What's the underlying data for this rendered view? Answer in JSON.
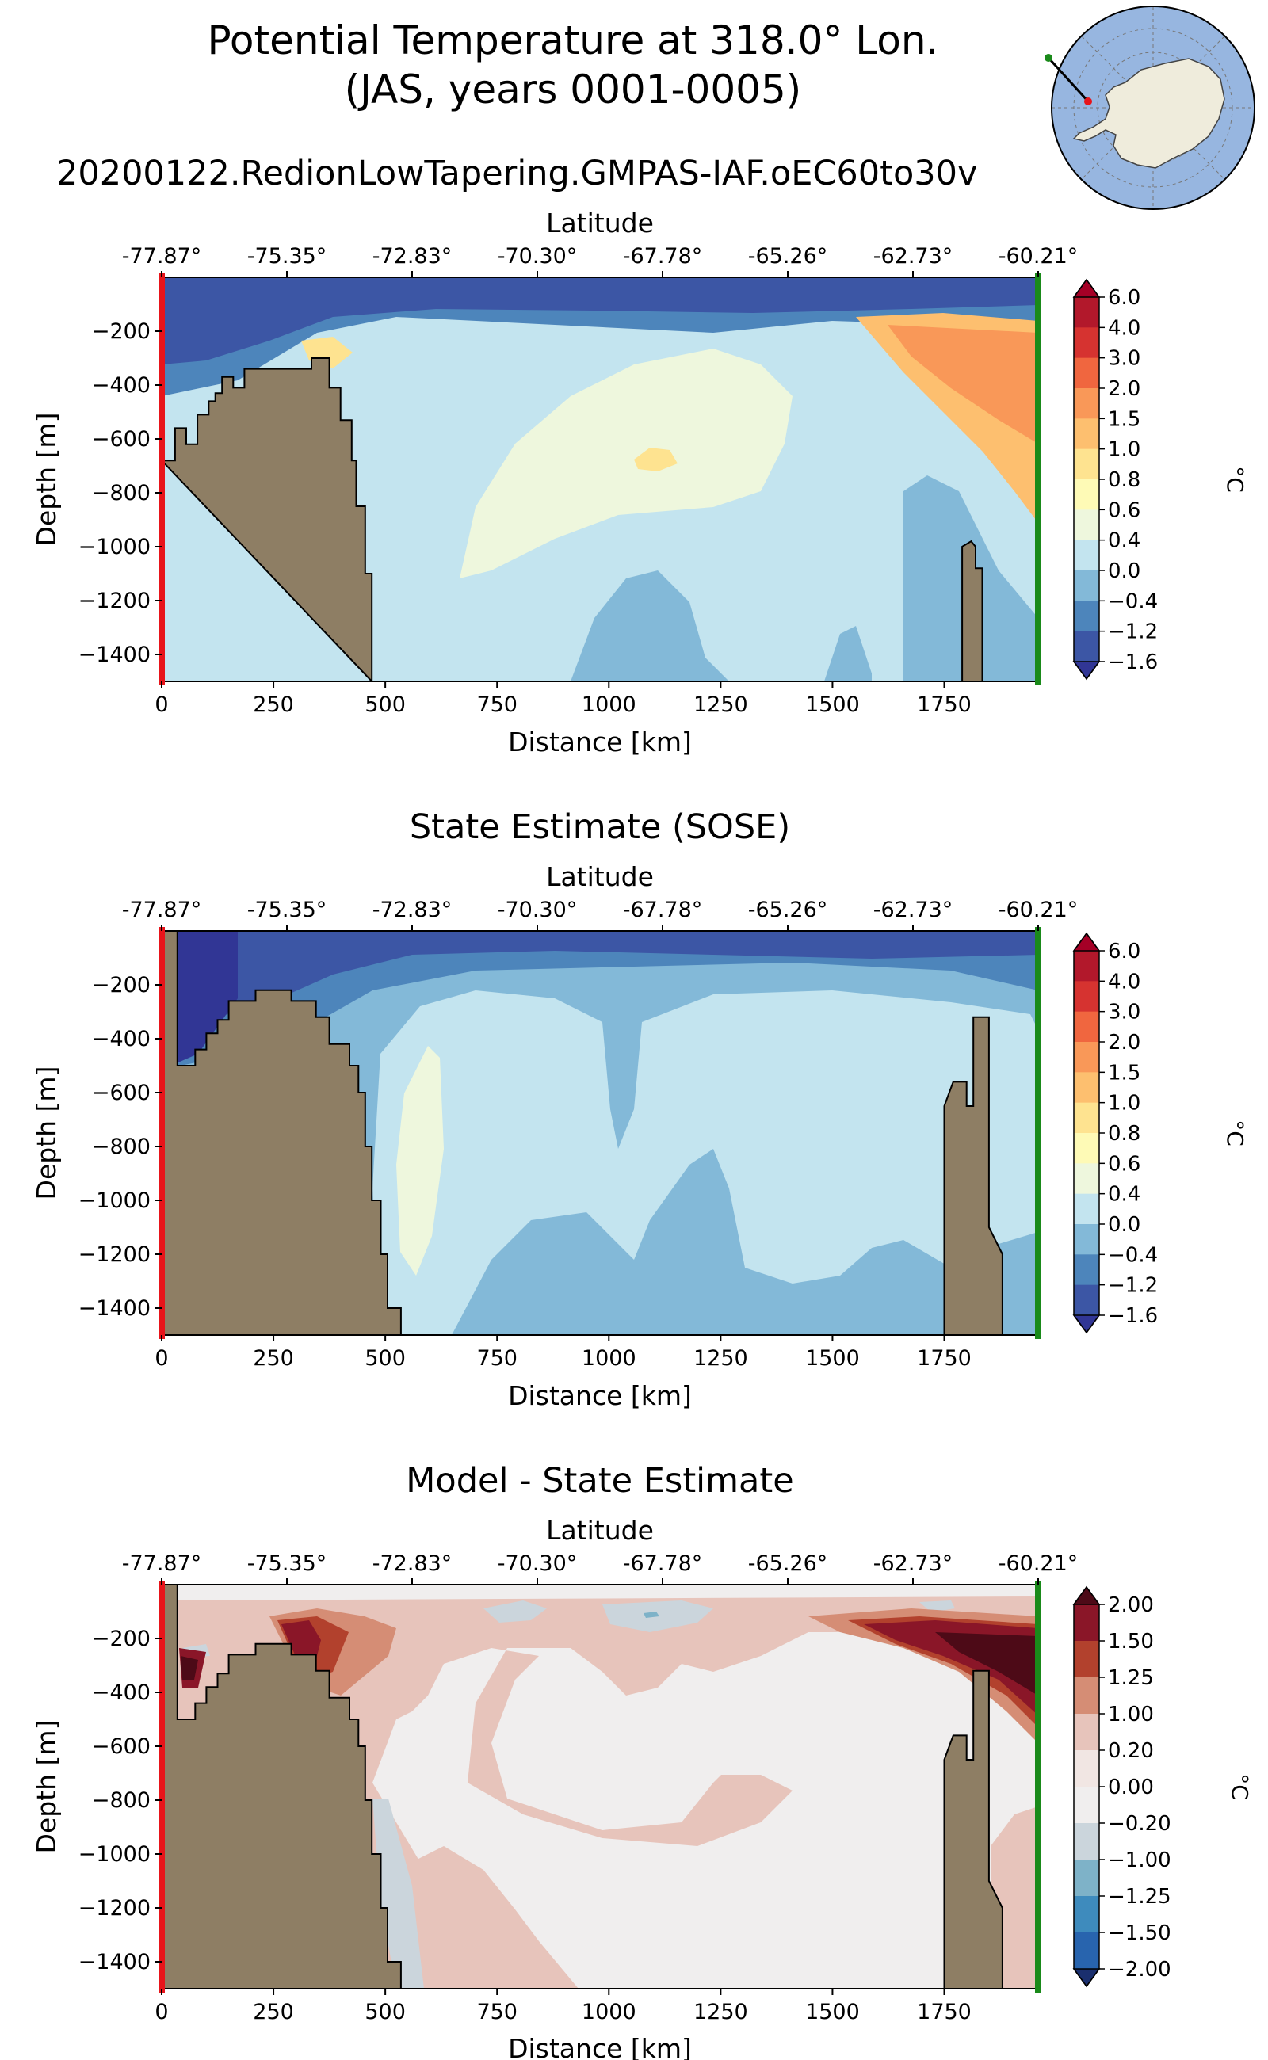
{
  "figure": {
    "title_line1": "Potential Temperature at 318.0° Lon.",
    "title_line2": "(JAS, years 0001-0005)"
  },
  "inset_map": {
    "description_icon": "antarctica-map-icon",
    "start_marker_color": "#1a8a1a",
    "end_marker_color": "#e8141a",
    "ocean_color": "#97b6e0",
    "land_color": "#efecdc"
  },
  "chart_data": [
    {
      "type": "heatmap",
      "title": "20200122.RedionLowTapering.GMPAS-IAF.oEC60to30v",
      "xlabel": "Distance [km]",
      "ylabel": "Depth [m]",
      "top_xlabel": "Latitude",
      "x_ticks": [
        0,
        250,
        500,
        750,
        1000,
        1250,
        1500,
        1750
      ],
      "x_tick_labels": [
        "0",
        "250",
        "500",
        "750",
        "1000",
        "1250",
        "1500",
        "1750"
      ],
      "top_ticks": [
        "-77.87°",
        "-75.35°",
        "-72.83°",
        "-70.30°",
        "-67.78°",
        "-65.26°",
        "-62.73°",
        "-60.21°"
      ],
      "y_ticks": [
        -200,
        -400,
        -600,
        -800,
        -1000,
        -1200,
        -1400
      ],
      "y_tick_labels": [
        "−200",
        "−400",
        "−600",
        "−800",
        "−1000",
        "−1200",
        "−1400"
      ],
      "xlim": [
        0,
        1960
      ],
      "ylim": [
        -1500,
        0
      ],
      "colorbar_label": "°C",
      "colorbar_levels": [
        "6.0",
        "4.0",
        "3.0",
        "2.0",
        "1.5",
        "1.0",
        "0.8",
        "0.6",
        "0.4",
        "0.0",
        "−0.4",
        "−1.2",
        "−1.6"
      ],
      "colorbar_colors": [
        "#b2182b",
        "#d63330",
        "#f0663f",
        "#f99858",
        "#fdbf6f",
        "#fee390",
        "#fefab6",
        "#eef7dd",
        "#c3e4ef",
        "#83b9d8",
        "#4d85bb",
        "#3c56a5"
      ],
      "extend_max_color": "#a50026",
      "extend_min_color": "#313695",
      "bathymetry": [
        [
          0,
          -680
        ],
        [
          30,
          -680
        ],
        [
          30,
          -560
        ],
        [
          55,
          -560
        ],
        [
          55,
          -620
        ],
        [
          80,
          -620
        ],
        [
          80,
          -510
        ],
        [
          105,
          -510
        ],
        [
          105,
          -460
        ],
        [
          120,
          -460
        ],
        [
          120,
          -430
        ],
        [
          135,
          -430
        ],
        [
          135,
          -370
        ],
        [
          160,
          -370
        ],
        [
          160,
          -410
        ],
        [
          185,
          -410
        ],
        [
          185,
          -340
        ],
        [
          335,
          -340
        ],
        [
          335,
          -300
        ],
        [
          375,
          -300
        ],
        [
          375,
          -410
        ],
        [
          400,
          -410
        ],
        [
          400,
          -530
        ],
        [
          425,
          -530
        ],
        [
          425,
          -680
        ],
        [
          435,
          -680
        ],
        [
          435,
          -850
        ],
        [
          455,
          -850
        ],
        [
          455,
          -1100
        ],
        [
          470,
          -1100
        ],
        [
          470,
          -1500
        ]
      ],
      "seamount": [
        [
          1790,
          -1500
        ],
        [
          1790,
          -1000
        ],
        [
          1810,
          -980
        ],
        [
          1820,
          -1000
        ],
        [
          1820,
          -1080
        ],
        [
          1835,
          -1080
        ],
        [
          1835,
          -1500
        ]
      ]
    },
    {
      "type": "heatmap",
      "title": "State Estimate (SOSE)",
      "xlabel": "Distance [km]",
      "ylabel": "Depth [m]",
      "top_xlabel": "Latitude",
      "x_ticks": [
        0,
        250,
        500,
        750,
        1000,
        1250,
        1500,
        1750
      ],
      "x_tick_labels": [
        "0",
        "250",
        "500",
        "750",
        "1000",
        "1250",
        "1500",
        "1750"
      ],
      "top_ticks": [
        "-77.87°",
        "-75.35°",
        "-72.83°",
        "-70.30°",
        "-67.78°",
        "-65.26°",
        "-62.73°",
        "-60.21°"
      ],
      "y_ticks": [
        -200,
        -400,
        -600,
        -800,
        -1000,
        -1200,
        -1400
      ],
      "y_tick_labels": [
        "−200",
        "−400",
        "−600",
        "−800",
        "−1000",
        "−1200",
        "−1400"
      ],
      "xlim": [
        0,
        1960
      ],
      "ylim": [
        -1500,
        0
      ],
      "colorbar_label": "°C",
      "colorbar_levels": [
        "6.0",
        "4.0",
        "3.0",
        "2.0",
        "1.5",
        "1.0",
        "0.8",
        "0.6",
        "0.4",
        "0.0",
        "−0.4",
        "−1.2",
        "−1.6"
      ],
      "colorbar_colors": [
        "#b2182b",
        "#d63330",
        "#f0663f",
        "#f99858",
        "#fdbf6f",
        "#fee390",
        "#fefab6",
        "#eef7dd",
        "#c3e4ef",
        "#83b9d8",
        "#4d85bb",
        "#3c56a5"
      ],
      "extend_max_color": "#a50026",
      "extend_min_color": "#313695",
      "bathymetry": [
        [
          0,
          -1500
        ],
        [
          0,
          0
        ],
        [
          35,
          0
        ],
        [
          35,
          -500
        ],
        [
          75,
          -500
        ],
        [
          75,
          -440
        ],
        [
          100,
          -440
        ],
        [
          100,
          -380
        ],
        [
          125,
          -380
        ],
        [
          125,
          -330
        ],
        [
          150,
          -330
        ],
        [
          150,
          -260
        ],
        [
          210,
          -260
        ],
        [
          210,
          -220
        ],
        [
          290,
          -220
        ],
        [
          290,
          -260
        ],
        [
          345,
          -260
        ],
        [
          345,
          -320
        ],
        [
          375,
          -320
        ],
        [
          375,
          -420
        ],
        [
          420,
          -420
        ],
        [
          420,
          -500
        ],
        [
          440,
          -500
        ],
        [
          440,
          -600
        ],
        [
          455,
          -600
        ],
        [
          455,
          -800
        ],
        [
          470,
          -800
        ],
        [
          470,
          -1000
        ],
        [
          490,
          -1000
        ],
        [
          490,
          -1200
        ],
        [
          505,
          -1200
        ],
        [
          505,
          -1400
        ],
        [
          535,
          -1400
        ],
        [
          535,
          -1500
        ]
      ],
      "seamount": [
        [
          1750,
          -1500
        ],
        [
          1750,
          -650
        ],
        [
          1770,
          -560
        ],
        [
          1800,
          -560
        ],
        [
          1800,
          -650
        ],
        [
          1815,
          -650
        ],
        [
          1815,
          -320
        ],
        [
          1850,
          -320
        ],
        [
          1850,
          -1100
        ],
        [
          1880,
          -1200
        ],
        [
          1880,
          -1500
        ]
      ]
    },
    {
      "type": "heatmap",
      "title": "Model - State Estimate",
      "xlabel": "Distance [km]",
      "ylabel": "Depth [m]",
      "top_xlabel": "Latitude",
      "x_ticks": [
        0,
        250,
        500,
        750,
        1000,
        1250,
        1500,
        1750
      ],
      "x_tick_labels": [
        "0",
        "250",
        "500",
        "750",
        "1000",
        "1250",
        "1500",
        "1750"
      ],
      "top_ticks": [
        "-77.87°",
        "-75.35°",
        "-72.83°",
        "-70.30°",
        "-67.78°",
        "-65.26°",
        "-62.73°",
        "-60.21°"
      ],
      "y_ticks": [
        -200,
        -400,
        -600,
        -800,
        -1000,
        -1200,
        -1400
      ],
      "y_tick_labels": [
        "−200",
        "−400",
        "−600",
        "−800",
        "−1000",
        "−1200",
        "−1400"
      ],
      "xlim": [
        0,
        1960
      ],
      "ylim": [
        -1500,
        0
      ],
      "colorbar_label": "°C",
      "colorbar_levels": [
        "2.00",
        "1.50",
        "1.25",
        "1.00",
        "0.20",
        "0.00",
        "−0.20",
        "−1.00",
        "−1.25",
        "−1.50",
        "−2.00"
      ],
      "colorbar_colors": [
        "#8a1628",
        "#b2412d",
        "#d58d75",
        "#e7c4bb",
        "#f1e6e3",
        "#f0eeee",
        "#cbd5dc",
        "#7eb2c8",
        "#3e8bbd",
        "#2864ae"
      ],
      "extend_max_color": "#4d0a17",
      "extend_min_color": "#1a2f6e",
      "bathymetry": [
        [
          0,
          -1500
        ],
        [
          0,
          0
        ],
        [
          35,
          0
        ],
        [
          35,
          -500
        ],
        [
          75,
          -500
        ],
        [
          75,
          -440
        ],
        [
          100,
          -440
        ],
        [
          100,
          -380
        ],
        [
          125,
          -380
        ],
        [
          125,
          -330
        ],
        [
          150,
          -330
        ],
        [
          150,
          -260
        ],
        [
          210,
          -260
        ],
        [
          210,
          -220
        ],
        [
          290,
          -220
        ],
        [
          290,
          -260
        ],
        [
          345,
          -260
        ],
        [
          345,
          -320
        ],
        [
          375,
          -320
        ],
        [
          375,
          -420
        ],
        [
          420,
          -420
        ],
        [
          420,
          -500
        ],
        [
          440,
          -500
        ],
        [
          440,
          -600
        ],
        [
          455,
          -600
        ],
        [
          455,
          -800
        ],
        [
          470,
          -800
        ],
        [
          470,
          -1000
        ],
        [
          490,
          -1000
        ],
        [
          490,
          -1200
        ],
        [
          505,
          -1200
        ],
        [
          505,
          -1400
        ],
        [
          535,
          -1400
        ],
        [
          535,
          -1500
        ]
      ],
      "seamount": [
        [
          1750,
          -1500
        ],
        [
          1750,
          -650
        ],
        [
          1770,
          -560
        ],
        [
          1800,
          -560
        ],
        [
          1800,
          -650
        ],
        [
          1815,
          -650
        ],
        [
          1815,
          -320
        ],
        [
          1850,
          -320
        ],
        [
          1850,
          -1100
        ],
        [
          1880,
          -1200
        ],
        [
          1880,
          -1500
        ]
      ]
    }
  ]
}
